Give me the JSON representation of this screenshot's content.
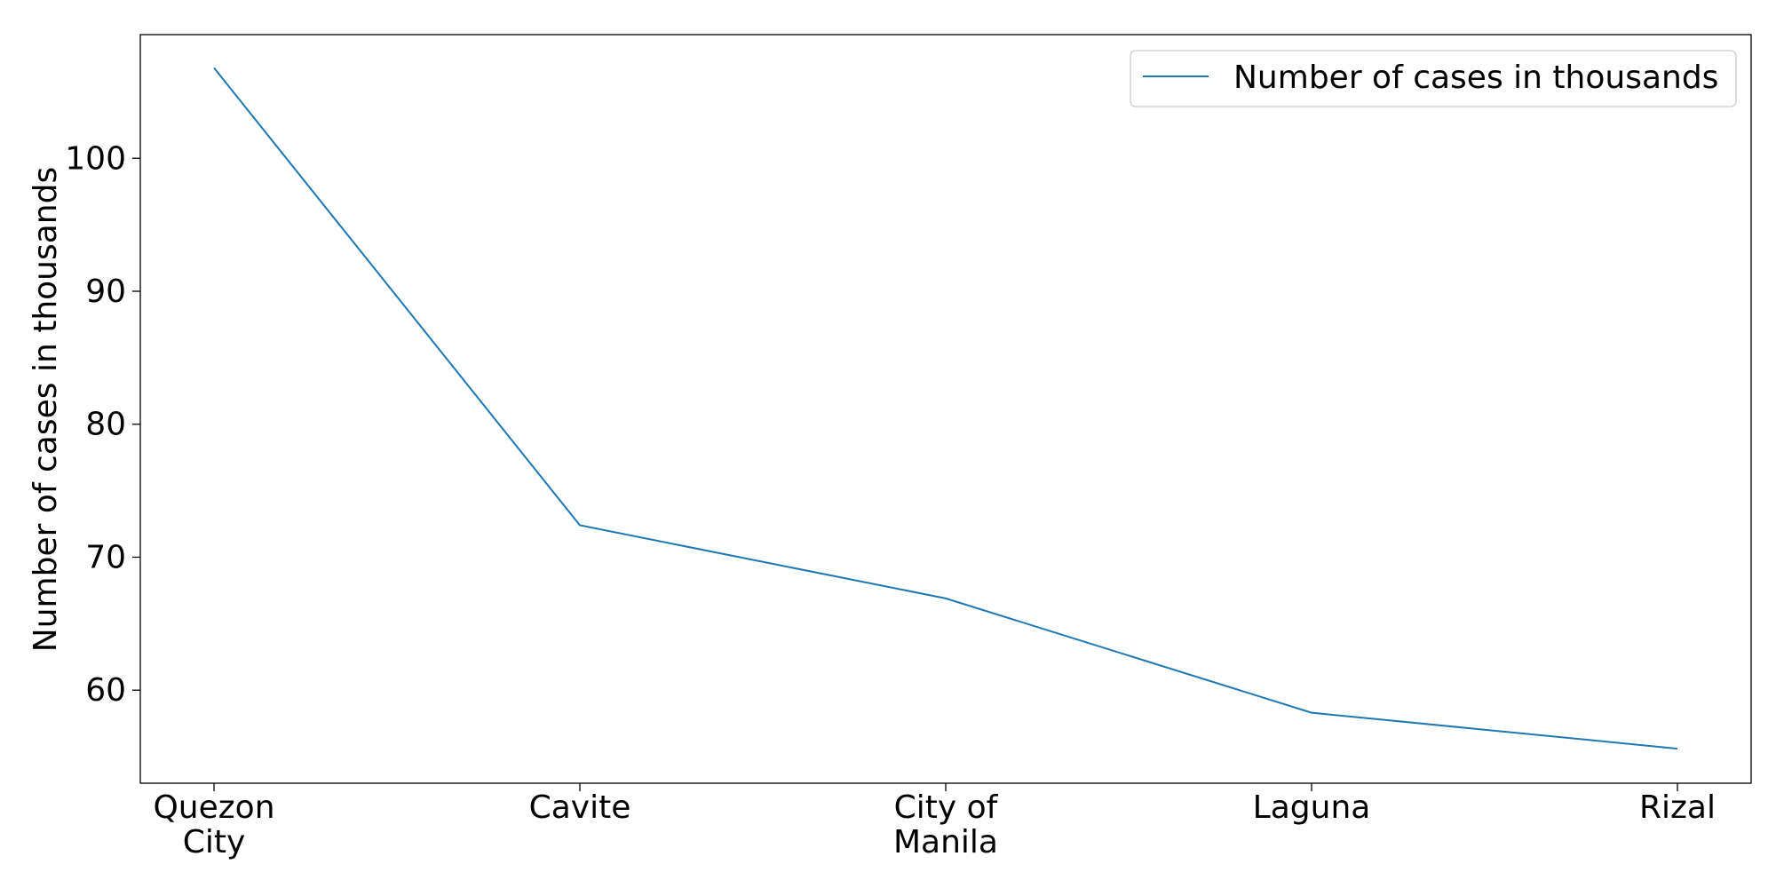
{
  "chart_data": {
    "type": "line",
    "categories": [
      "Quezon City",
      "Cavite",
      "City of Manila",
      "Laguna",
      "Rizal"
    ],
    "category_lines": [
      [
        "Quezon",
        "City"
      ],
      [
        "Cavite"
      ],
      [
        "City of",
        "Manila"
      ],
      [
        "Laguna"
      ],
      [
        "Rizal"
      ]
    ],
    "series": [
      {
        "name": "Number of cases in thousands",
        "values": [
          106.8,
          72.4,
          66.9,
          58.3,
          55.6
        ],
        "color": "#1f77b4"
      }
    ],
    "xlabel": "",
    "ylabel": "Number of cases in thousands",
    "ylim": [
      53.0,
      109.3
    ],
    "yticks": [
      60,
      70,
      80,
      90,
      100
    ],
    "ytick_labels": [
      "60",
      "70",
      "80",
      "90",
      "100"
    ],
    "grid": false,
    "legend": "top-right"
  }
}
